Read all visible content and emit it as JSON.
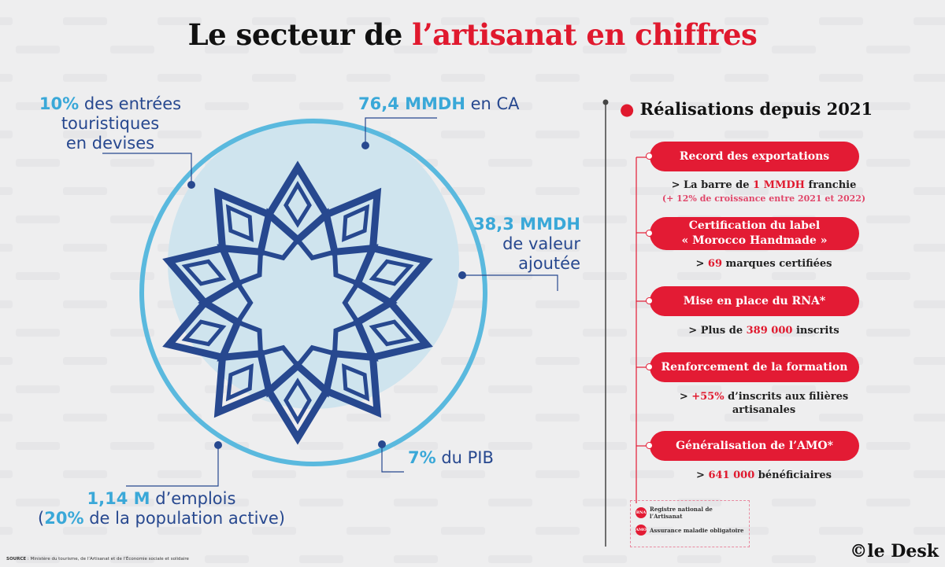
{
  "title": {
    "part1": "Le secteur de ",
    "part2": "l’artisanat en chiffres"
  },
  "stats": {
    "tourism": {
      "value": "10%",
      "line1": " des entrées",
      "line2": "touristiques",
      "line3": "en devises"
    },
    "ca": {
      "value": "76,4 MMDH",
      "text": " en CA"
    },
    "va": {
      "value": "38,3 MMDH",
      "line2": "de valeur",
      "line3": "ajoutée"
    },
    "pib": {
      "value": "7%",
      "text": " du PIB"
    },
    "jobs": {
      "value": "1,14 M",
      "text": " d’emplois",
      "open": "(",
      "pct": "20%",
      "text2": " de la population active)"
    }
  },
  "realisations": {
    "heading": "Réalisations depuis 2021",
    "items": [
      {
        "label": "Record des exportations",
        "pre": "> La barre de ",
        "hl": "1 MMDH",
        "post": " franchie",
        "note": "(+ 12% de croissance entre 2021 et 2022)"
      },
      {
        "label": "Certification du label",
        "label2": "« Morocco Handmade »",
        "pre": "> ",
        "hl": "69",
        "post": " marques certifiées"
      },
      {
        "label": "Mise en place du RNA*",
        "pre": "> Plus de ",
        "hl": "389 000",
        "post": " inscrits"
      },
      {
        "label": "Renforcement de la formation",
        "pre": "> ",
        "hl": "+55%",
        "post": " d’inscrits aux filières",
        "post2": "artisanales"
      },
      {
        "label": "Généralisation de l’AMO*",
        "pre": "> ",
        "hl": "641 000",
        "post": " bénéficiaires"
      }
    ]
  },
  "legend": [
    {
      "abbr": "RNA",
      "text": "Registre national de l’Artisanat"
    },
    {
      "abbr": "AMO",
      "text": "Assurance maladie obligatoire"
    }
  ],
  "source": {
    "label": "SOURCE",
    "text": " : Ministère du tourisme, de l’Artisanat et de l’Économie sociale et solidaire"
  },
  "brand": "©le Desk",
  "watermark": "le Desk",
  "colors": {
    "navy": "#27488f",
    "light_blue": "#3aa8d8",
    "red": "#e31b34"
  }
}
